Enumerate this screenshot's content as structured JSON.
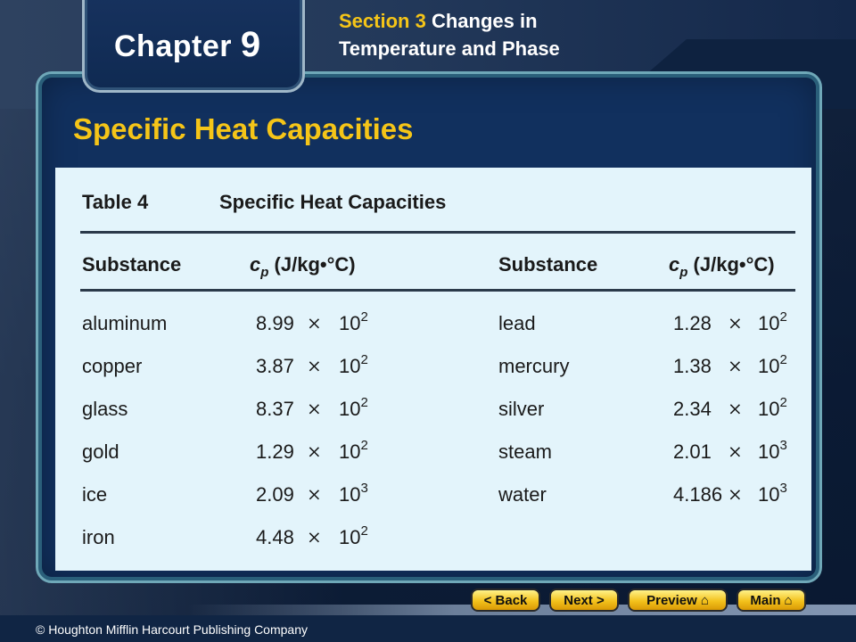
{
  "header": {
    "chapter_label": "Chapter",
    "chapter_number": "9",
    "section_label": "Section 3",
    "section_title_line1": "Changes in",
    "section_title_line2": "Temperature and Phase"
  },
  "slide_title": "Specific Heat Capacities",
  "table": {
    "label": "Table 4",
    "title": "Specific Heat Capacities",
    "columns": {
      "substance": "Substance",
      "cp_symbol": "c",
      "cp_subscript": "p",
      "cp_unit": "(J/kg•°C)"
    },
    "left_rows": [
      {
        "substance": "aluminum",
        "mantissa": "8.99",
        "base": "10",
        "exponent": "2"
      },
      {
        "substance": "copper",
        "mantissa": "3.87",
        "base": "10",
        "exponent": "2"
      },
      {
        "substance": "glass",
        "mantissa": "8.37",
        "base": "10",
        "exponent": "2"
      },
      {
        "substance": "gold",
        "mantissa": "1.29",
        "base": "10",
        "exponent": "2"
      },
      {
        "substance": "ice",
        "mantissa": "2.09",
        "base": "10",
        "exponent": "3"
      },
      {
        "substance": "iron",
        "mantissa": "4.48",
        "base": "10",
        "exponent": "2"
      }
    ],
    "right_rows": [
      {
        "substance": "lead",
        "mantissa": "1.28",
        "base": "10",
        "exponent": "2"
      },
      {
        "substance": "mercury",
        "mantissa": "1.38",
        "base": "10",
        "exponent": "2"
      },
      {
        "substance": "silver",
        "mantissa": "2.34",
        "base": "10",
        "exponent": "2"
      },
      {
        "substance": "steam",
        "mantissa": "2.01",
        "base": "10",
        "exponent": "3"
      },
      {
        "substance": "water",
        "mantissa": "4.186",
        "base": "10",
        "exponent": "3"
      }
    ],
    "times_symbol": "×"
  },
  "nav": {
    "back_label": "< Back",
    "next_label": "Next >",
    "preview_label": "Preview",
    "main_label": "Main",
    "home_icon": "home-icon"
  },
  "footer": {
    "copyright": "© Houghton Mifflin Harcourt Publishing Company"
  },
  "colors": {
    "accent_yellow": "#f5c518",
    "panel_blue": "#11305e",
    "table_bg": "#e3f4fb"
  }
}
